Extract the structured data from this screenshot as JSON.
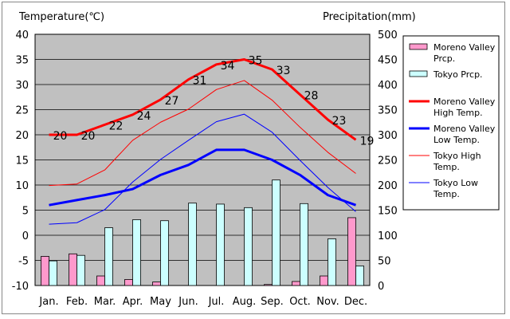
{
  "chart_data": {
    "type": "bar+line",
    "left_axis_title": "Temperature(℃)",
    "right_axis_title": "Precipitation(mm)",
    "temp_ylim": [
      -10,
      40
    ],
    "temp_ticks": [
      40,
      35,
      30,
      25,
      20,
      15,
      10,
      5,
      0,
      -5,
      -10
    ],
    "precip_ylim": [
      0,
      500
    ],
    "precip_ticks": [
      500,
      450,
      400,
      350,
      300,
      250,
      200,
      150,
      100,
      50,
      0
    ],
    "grid": true,
    "legend_position": "right",
    "categories": [
      "Jan.",
      "Feb.",
      "Mar.",
      "Apr.",
      "May",
      "Jun.",
      "Jul.",
      "Aug.",
      "Sep.",
      "Oct.",
      "Nov.",
      "Dec."
    ],
    "bars": [
      {
        "name": "Moreno Valley Prcp.",
        "color": "#ff99cc",
        "values": [
          58,
          63,
          19,
          12,
          7,
          0,
          0,
          0,
          2,
          8,
          19,
          135
        ]
      },
      {
        "name": "Tokyo Prcp.",
        "color": "#ccffff",
        "values": [
          49,
          60,
          115,
          131,
          129,
          164,
          162,
          155,
          210,
          163,
          93,
          39
        ]
      }
    ],
    "lines": [
      {
        "name": "Moreno Valley High Temp.",
        "color": "#ff0000",
        "width": 3,
        "labels": true,
        "values": [
          20,
          20,
          22,
          24,
          27,
          31,
          34,
          35,
          33,
          28,
          23,
          19
        ]
      },
      {
        "name": "Moreno Valley Low Temp.",
        "color": "#0000ff",
        "width": 3,
        "labels": false,
        "values": [
          6,
          7,
          8,
          9.2,
          12,
          14,
          17,
          17,
          15,
          12,
          8,
          6
        ]
      },
      {
        "name": "Tokyo High Temp.",
        "color": "#ff0000",
        "width": 1,
        "labels": false,
        "values": [
          9.9,
          10.2,
          13,
          18.9,
          22.5,
          25.1,
          29,
          30.8,
          26.9,
          21.5,
          16.5,
          12.3
        ]
      },
      {
        "name": "Tokyo Low Temp.",
        "color": "#0000ff",
        "width": 1,
        "labels": false,
        "values": [
          2.2,
          2.5,
          5.1,
          10.6,
          15.1,
          18.9,
          22.6,
          24.1,
          20.5,
          14.9,
          9.5,
          4.7
        ]
      }
    ],
    "legend": [
      {
        "kind": "box",
        "color": "#ff99cc",
        "label_lines": [
          "Moreno Valley",
          "Prcp."
        ]
      },
      {
        "kind": "box",
        "color": "#ccffff",
        "label_lines": [
          "Tokyo Prcp."
        ]
      },
      {
        "kind": "line",
        "color": "#ff0000",
        "width": 3,
        "label_lines": [
          "Moreno Valley",
          "High Temp."
        ]
      },
      {
        "kind": "line",
        "color": "#0000ff",
        "width": 3,
        "label_lines": [
          "Moreno Valley",
          "Low Temp."
        ]
      },
      {
        "kind": "line",
        "color": "#ff0000",
        "width": 1,
        "label_lines": [
          "Tokyo High",
          "Temp."
        ]
      },
      {
        "kind": "line",
        "color": "#0000ff",
        "width": 1,
        "label_lines": [
          "Tokyo Low",
          "Temp."
        ]
      }
    ],
    "plot_background": "#c0c0c0"
  }
}
